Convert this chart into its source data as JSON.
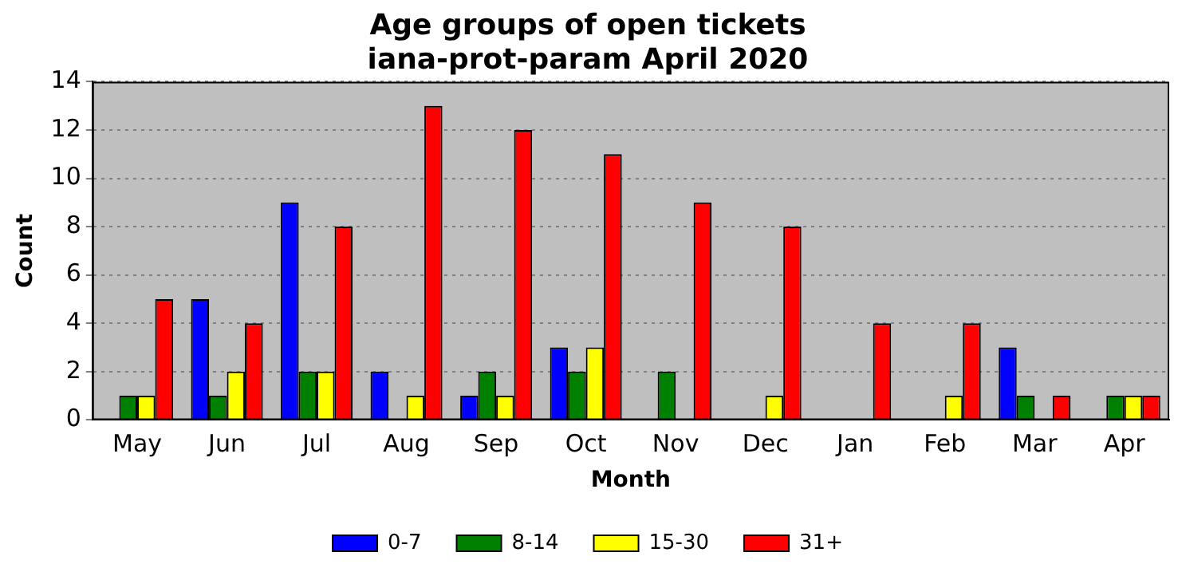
{
  "chart_data": {
    "type": "bar",
    "title": "Age groups of open tickets\niana-prot-param April 2020",
    "xlabel": "Month",
    "ylabel": "Count",
    "categories": [
      "May",
      "Jun",
      "Jul",
      "Aug",
      "Sep",
      "Oct",
      "Nov",
      "Dec",
      "Jan",
      "Feb",
      "Mar",
      "Apr"
    ],
    "series": [
      {
        "name": "0-7",
        "color": "#0000ff",
        "values": [
          0,
          5,
          9,
          2,
          1,
          3,
          0,
          0,
          0,
          0,
          3,
          0
        ]
      },
      {
        "name": "8-14",
        "color": "#008000",
        "values": [
          1,
          1,
          2,
          0,
          2,
          2,
          2,
          0,
          0,
          0,
          1,
          1
        ]
      },
      {
        "name": "15-30",
        "color": "#ffff00",
        "values": [
          1,
          2,
          2,
          1,
          1,
          3,
          0,
          1,
          0,
          1,
          0,
          1
        ]
      },
      {
        "name": "31+",
        "color": "#ff0000",
        "values": [
          5,
          4,
          8,
          13,
          12,
          11,
          9,
          8,
          4,
          4,
          1,
          1
        ]
      }
    ],
    "ylim": [
      0,
      14
    ],
    "yticks": [
      0,
      2,
      4,
      6,
      8,
      10,
      12,
      14
    ],
    "grid": "y",
    "legend": "bottom"
  }
}
